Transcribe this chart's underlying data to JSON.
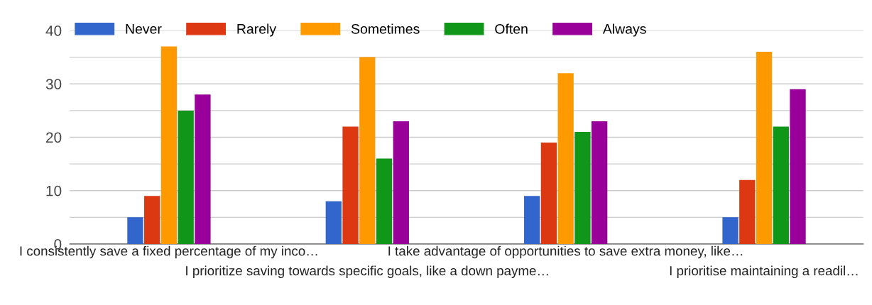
{
  "chart_data": {
    "type": "bar",
    "categories": [
      "I consistently save a fixed percentage of my inco…",
      "I prioritize saving towards specific goals, like a down payme…",
      "I take advantage of opportunities to save extra money, like…",
      "I prioritise maintaining a readil…"
    ],
    "series": [
      {
        "name": "Never",
        "color": "#3366cc",
        "values": [
          5,
          8,
          9,
          5
        ]
      },
      {
        "name": "Rarely",
        "color": "#dc3912",
        "values": [
          9,
          22,
          19,
          12
        ]
      },
      {
        "name": "Sometimes",
        "color": "#ff9900",
        "values": [
          37,
          35,
          32,
          36
        ]
      },
      {
        "name": "Often",
        "color": "#109618",
        "values": [
          25,
          16,
          21,
          22
        ]
      },
      {
        "name": "Always",
        "color": "#990099",
        "values": [
          28,
          23,
          23,
          29
        ]
      }
    ],
    "ylim": [
      0,
      40
    ],
    "yticks": [
      0,
      {
        "value": 5,
        "label": null
      },
      10,
      {
        "value": 15,
        "label": null
      },
      20,
      {
        "value": 25,
        "label": null
      },
      30,
      {
        "value": 35,
        "label": null
      },
      40
    ],
    "grid": "y",
    "legend": "top left"
  }
}
